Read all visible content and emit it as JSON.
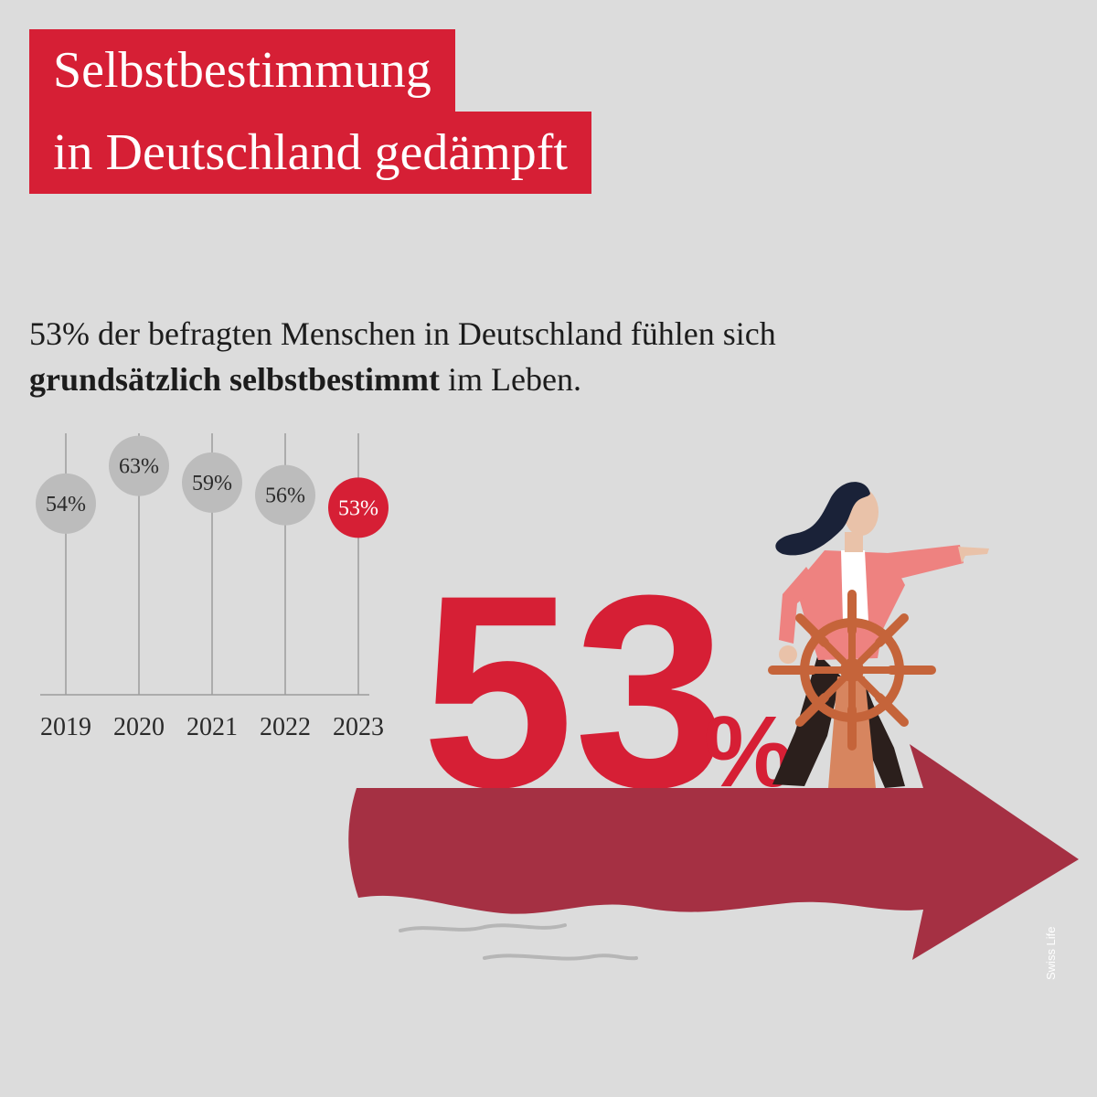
{
  "title": {
    "line1": "Selbstbestimmung",
    "line2": "in Deutschland gedämpft"
  },
  "subtitle": {
    "line1": "53% der befragten Menschen in Deutschland fühlen sich",
    "line2_bold": "grundsätzlich selbstbestimmt",
    "line2_rest": " im Leben."
  },
  "big_value": {
    "number": "53",
    "unit": "%"
  },
  "brand": "Swiss Life",
  "colors": {
    "accent": "#d61f35",
    "arrow": "#a53043",
    "bubble_past": "#bcbcbc",
    "background": "#dcdcdc"
  },
  "chart_data": {
    "type": "dot",
    "categories": [
      "2019",
      "2020",
      "2021",
      "2022",
      "2023"
    ],
    "values": [
      54,
      63,
      59,
      56,
      53
    ],
    "labels": [
      "54%",
      "63%",
      "59%",
      "56%",
      "53%"
    ],
    "highlight_index": 4,
    "ylim": [
      0,
      70
    ],
    "grid": false
  }
}
